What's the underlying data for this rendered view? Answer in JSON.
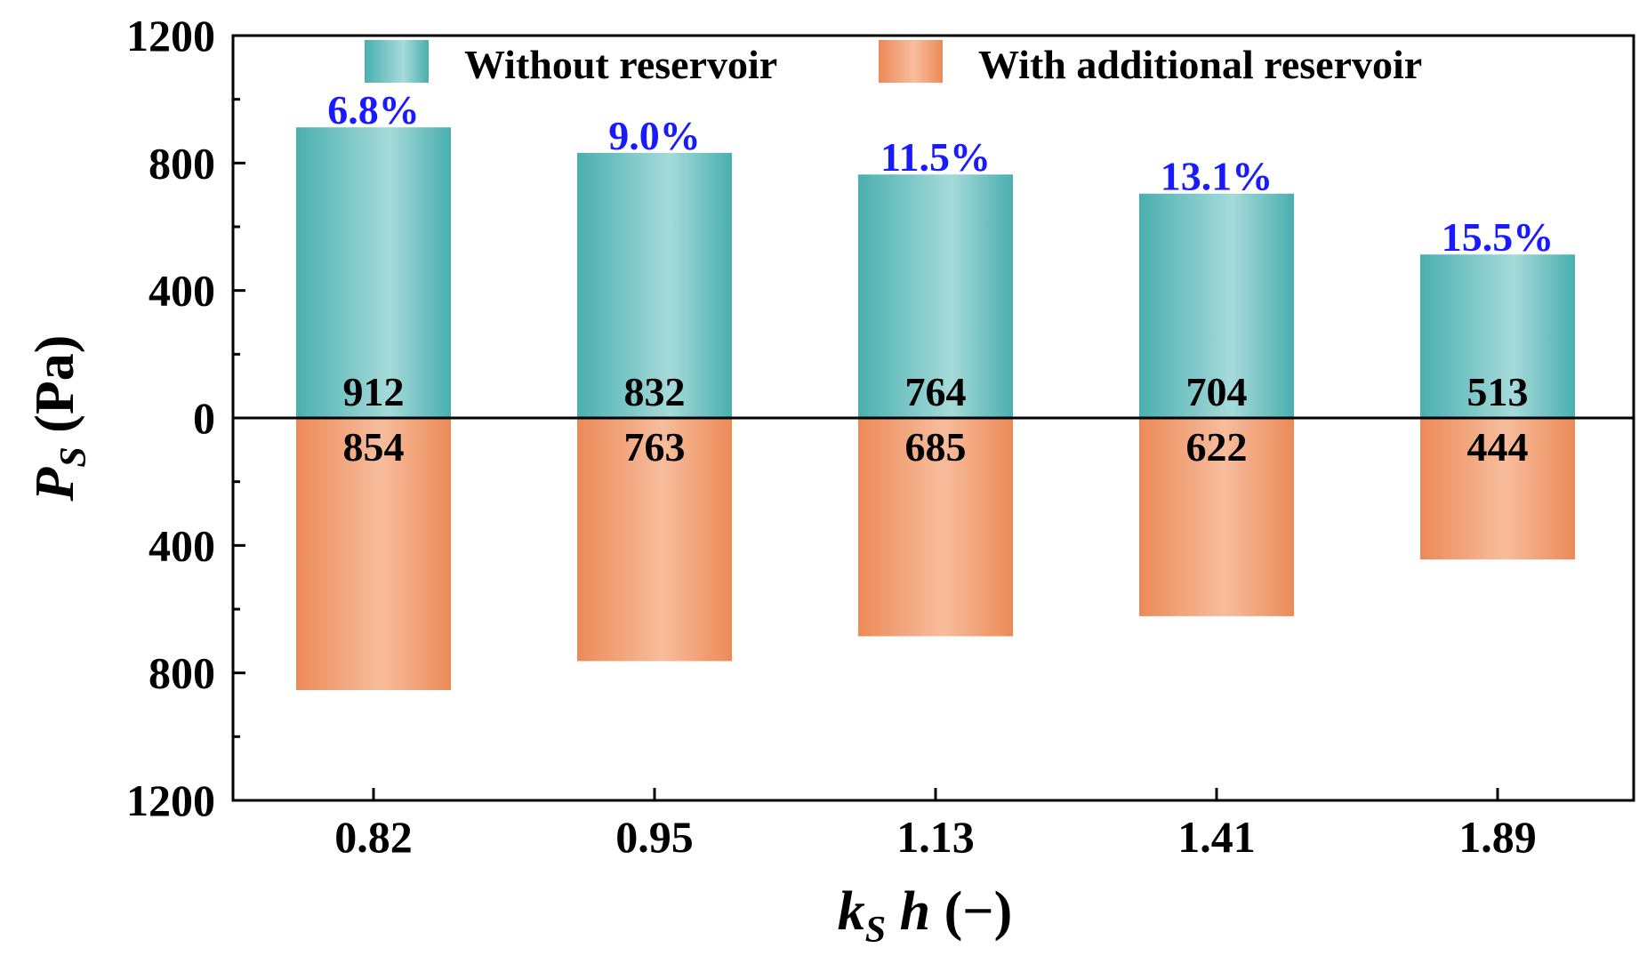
{
  "chart_data": {
    "type": "bar",
    "categories": [
      "0.82",
      "0.95",
      "1.13",
      "1.41",
      "1.89"
    ],
    "series": [
      {
        "name": "Without reservoir",
        "values": [
          912,
          832,
          764,
          704,
          513
        ],
        "color": "#4fb3b3",
        "direction": "up"
      },
      {
        "name": "With additional reservoir",
        "values": [
          854,
          763,
          685,
          622,
          444
        ],
        "color": "#ee9062",
        "direction": "down"
      }
    ],
    "value_labels_up": [
      "912",
      "832",
      "764",
      "704",
      "513"
    ],
    "value_labels_down": [
      "854",
      "763",
      "685",
      "622",
      "444"
    ],
    "percent_labels": [
      "6.8%",
      "9.0%",
      "11.5%",
      "13.1%",
      "15.5%"
    ],
    "percent_color": "#1a1aff",
    "yticks": [
      {
        "value": 1200,
        "label": "1200"
      },
      {
        "value": 800,
        "label": "800"
      },
      {
        "value": 400,
        "label": "400"
      },
      {
        "value": 0,
        "label": "0"
      },
      {
        "value": -400,
        "label": "400"
      },
      {
        "value": -800,
        "label": "800"
      },
      {
        "value": -1200,
        "label": "1200"
      }
    ],
    "ylim": [
      -1200,
      1200
    ],
    "minor_tick_step": 200,
    "ylabel": {
      "main": "P",
      "sub": "S",
      "unit": " (Pa)"
    },
    "xlabel": {
      "main": "k",
      "sub": "S",
      "rest": " h",
      "unit": " (−)"
    },
    "legend": {
      "position": "top",
      "entries": [
        "Without reservoir",
        "With additional reservoir"
      ]
    },
    "grid": false
  }
}
